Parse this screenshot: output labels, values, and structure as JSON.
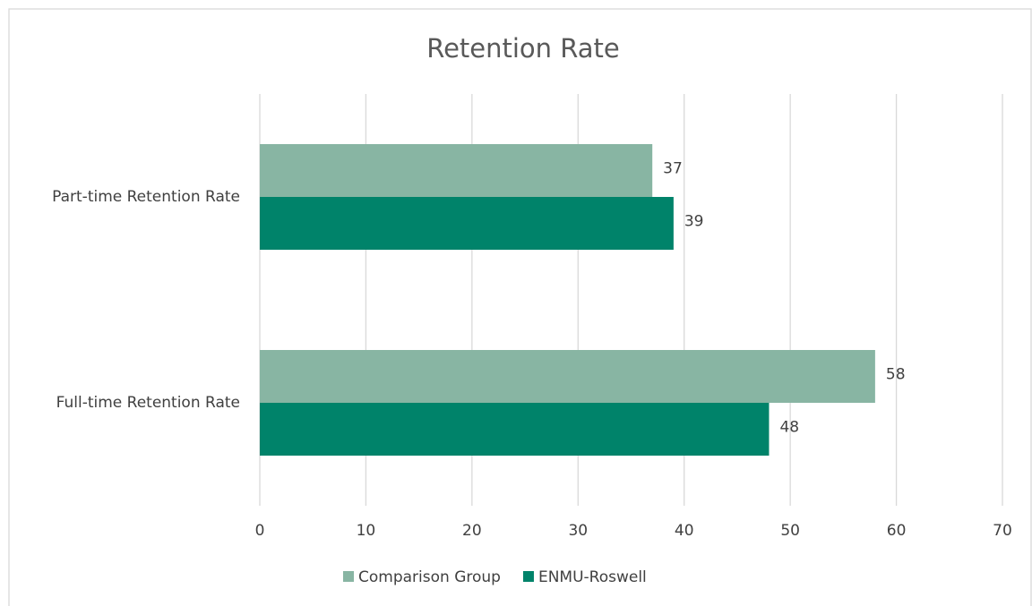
{
  "chart_data": {
    "type": "bar",
    "orientation": "horizontal",
    "title": "Retention Rate",
    "categories": [
      "Part-time Retention Rate",
      "Full-time Retention Rate"
    ],
    "series": [
      {
        "name": "Comparison Group",
        "color": "#88b5a3",
        "values": [
          37,
          58
        ]
      },
      {
        "name": "ENMU-Roswell",
        "color": "#00836a",
        "values": [
          39,
          48
        ]
      }
    ],
    "xlim": [
      0,
      70
    ],
    "xticks": [
      0,
      10,
      20,
      30,
      40,
      50,
      60,
      70
    ],
    "grid": true,
    "legend": "bottom"
  }
}
